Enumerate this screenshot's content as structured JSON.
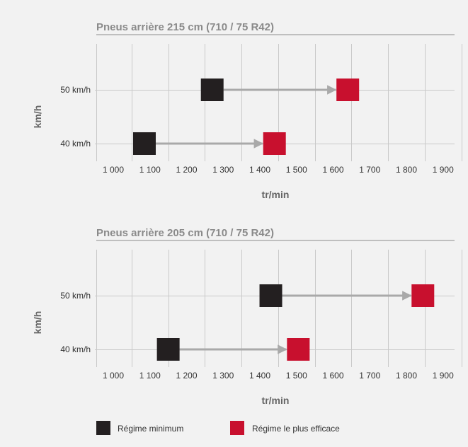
{
  "colors": {
    "background": "#f2f2f2",
    "grid": "#c9c9c9",
    "axis_text": "#666666",
    "title_text": "#8a8a8a",
    "minimum": "#231f20",
    "efficient": "#c8102e",
    "arrow": "#a9a9a9"
  },
  "legend": {
    "items": [
      {
        "label": "Régime minimum",
        "color": "#231f20"
      },
      {
        "label": "Régime le plus efficace",
        "color": "#c8102e"
      }
    ]
  },
  "chart_data": [
    {
      "type": "scatter",
      "title": "Pneus arrière 215 cm (710 / 75 R42)",
      "xlabel": "tr/min",
      "ylabel": "km/h",
      "x_ticks": [
        1000,
        1100,
        1200,
        1300,
        1400,
        1500,
        1600,
        1700,
        1800,
        1900
      ],
      "x_tick_labels": [
        "1 000",
        "1 100",
        "1 200",
        "1 300",
        "1 400",
        "1 500",
        "1 600",
        "1 700",
        "1 800",
        "1 900"
      ],
      "xlim": [
        955,
        1955
      ],
      "categories": [
        "40 km/h",
        "50 km/h"
      ],
      "grid": true,
      "series": [
        {
          "name": "Régime minimum",
          "values": [
            1085,
            1270
          ]
        },
        {
          "name": "Régime le plus efficace",
          "values": [
            1440,
            1640
          ]
        }
      ]
    },
    {
      "type": "scatter",
      "title": "Pneus arrière 205 cm (710 / 75 R42)",
      "xlabel": "tr/min",
      "ylabel": "km/h",
      "x_ticks": [
        1000,
        1100,
        1200,
        1300,
        1400,
        1500,
        1600,
        1700,
        1800,
        1900
      ],
      "x_tick_labels": [
        "1 000",
        "1 100",
        "1 200",
        "1 300",
        "1 400",
        "1 500",
        "1 600",
        "1 700",
        "1 800",
        "1 900"
      ],
      "xlim": [
        955,
        1955
      ],
      "categories": [
        "40 km/h",
        "50 km/h"
      ],
      "grid": true,
      "series": [
        {
          "name": "Régime minimum",
          "values": [
            1150,
            1430
          ]
        },
        {
          "name": "Régime le plus efficace",
          "values": [
            1505,
            1845
          ]
        }
      ]
    }
  ]
}
